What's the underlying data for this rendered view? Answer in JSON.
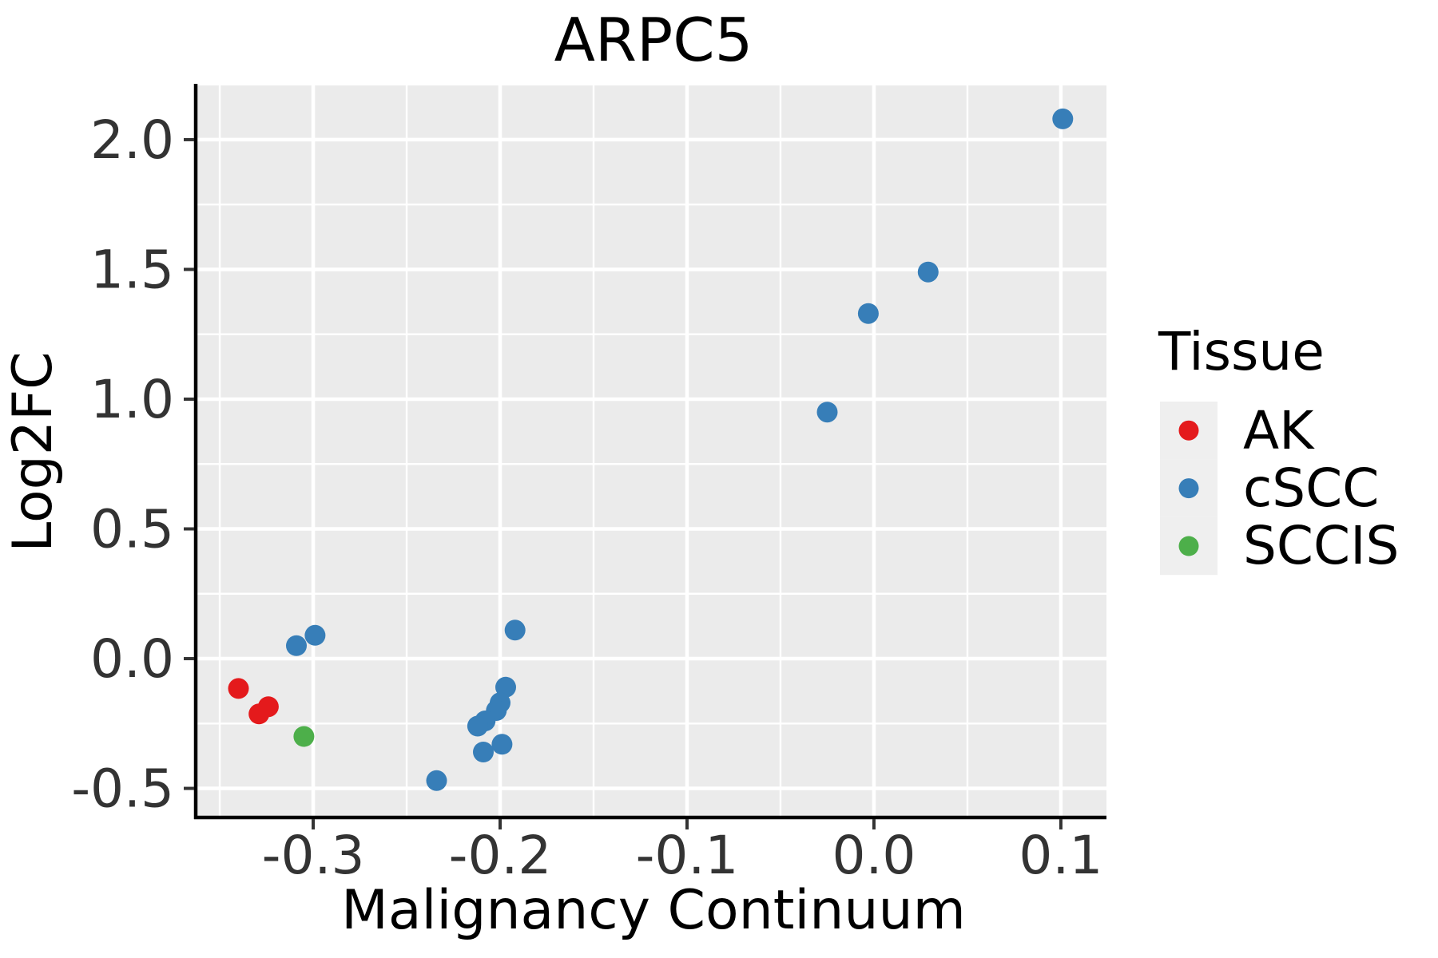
{
  "title": "ARPC5",
  "chart_data": {
    "type": "scatter",
    "title": "ARPC5",
    "xlabel": "Malignancy Continuum",
    "ylabel": "Log2FC",
    "xlim": [
      -0.362,
      0.1244
    ],
    "ylim": [
      -0.606,
      2.209
    ],
    "x_ticks": {
      "values": [
        -0.3,
        -0.2,
        -0.1,
        0.0,
        0.1
      ],
      "labels": [
        "-0.3",
        "-0.2",
        "-0.1",
        "0.0",
        "0.1"
      ]
    },
    "y_ticks": {
      "values": [
        2.0,
        1.5,
        1.0,
        0.5,
        0.0,
        -0.5
      ],
      "labels": [
        "2.0",
        "1.5",
        "1.0",
        "0.5",
        "0.0",
        "-0.5"
      ]
    },
    "x_minor": [
      -0.35,
      -0.25,
      -0.15,
      -0.05,
      0.05
    ],
    "y_minor": [
      1.75,
      1.25,
      0.75,
      0.25,
      -0.25
    ],
    "grid": true,
    "panel_bg": "#EBEBEB",
    "grid_color": "#FFFFFF",
    "axis_color": "#000000",
    "tick_color": "#333333",
    "point_radius": 13,
    "legend_position": "right",
    "legend_title": "Tissue",
    "series": [
      {
        "name": "AK",
        "color": "#E41A1C",
        "points": [
          [
            -0.34,
            -0.115
          ],
          [
            -0.324,
            -0.185
          ],
          [
            -0.329,
            -0.213
          ]
        ]
      },
      {
        "name": "cSCC",
        "color": "#377EB8",
        "points": [
          [
            0.101,
            2.08
          ],
          [
            0.029,
            1.49
          ],
          [
            -0.003,
            1.33
          ],
          [
            -0.025,
            0.95
          ],
          [
            -0.192,
            0.11
          ],
          [
            -0.299,
            0.09
          ],
          [
            -0.309,
            0.05
          ],
          [
            -0.197,
            -0.11
          ],
          [
            -0.2,
            -0.17
          ],
          [
            -0.202,
            -0.2
          ],
          [
            -0.208,
            -0.24
          ],
          [
            -0.212,
            -0.26
          ],
          [
            -0.199,
            -0.33
          ],
          [
            -0.209,
            -0.36
          ],
          [
            -0.234,
            -0.47
          ]
        ]
      },
      {
        "name": "SCCIS",
        "color": "#4DAF4A",
        "points": [
          [
            -0.305,
            -0.3
          ]
        ]
      }
    ]
  },
  "legend": {
    "title": "Tissue",
    "items": [
      {
        "label": "AK",
        "color": "#E41A1C"
      },
      {
        "label": "cSCC",
        "color": "#377EB8"
      },
      {
        "label": "SCCIS",
        "color": "#4DAF4A"
      }
    ]
  }
}
